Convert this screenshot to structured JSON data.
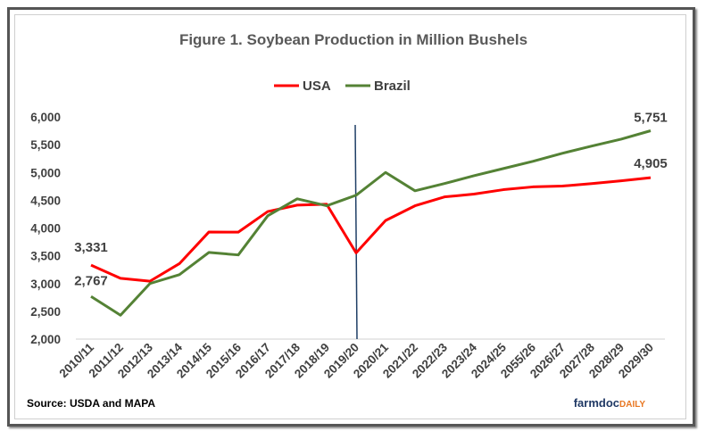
{
  "chart_data": {
    "type": "line",
    "title": "Figure 1. Soybean Production in Million Bushels",
    "categories": [
      "2010/11",
      "2011/12",
      "2012/13",
      "2013/14",
      "2014/15",
      "2015/16",
      "2016/17",
      "2017/18",
      "2018/19",
      "2019/20",
      "2020/21",
      "2021/22",
      "2022/23",
      "2023/24",
      "2024/25",
      "2055/26",
      "2026/27",
      "2027/28",
      "2028/29",
      "2029/30"
    ],
    "series": [
      {
        "name": "USA",
        "color": "#ff0000",
        "values": [
          3331,
          3094,
          3042,
          3358,
          3927,
          3926,
          4296,
          4412,
          4428,
          3552,
          4135,
          4400,
          4560,
          4610,
          4690,
          4740,
          4755,
          4800,
          4850,
          4905
        ]
      },
      {
        "name": "Brazil",
        "color": "#548235",
        "values": [
          2767,
          2430,
          3000,
          3160,
          3560,
          3515,
          4220,
          4525,
          4400,
          4590,
          5000,
          4670,
          4800,
          4940,
          5070,
          5200,
          5345,
          5475,
          5600,
          5751
        ]
      }
    ],
    "data_labels": {
      "usa_first": "3,331",
      "brazil_first": "2,767",
      "usa_last": "4,905",
      "brazil_last": "5,751"
    },
    "yticks": [
      "2,000",
      "2,500",
      "3,000",
      "3,500",
      "4,000",
      "4,500",
      "5,000",
      "5,500",
      "6,000"
    ],
    "ylim": [
      2000,
      6000
    ],
    "marker_line_category": "2019/20",
    "legend_position": "top",
    "grid": false,
    "xlabel": "",
    "ylabel": ""
  },
  "source": "Source: USDA  and MAPA",
  "logo": {
    "part1": "farmdoc",
    "part2": "DAILY"
  }
}
